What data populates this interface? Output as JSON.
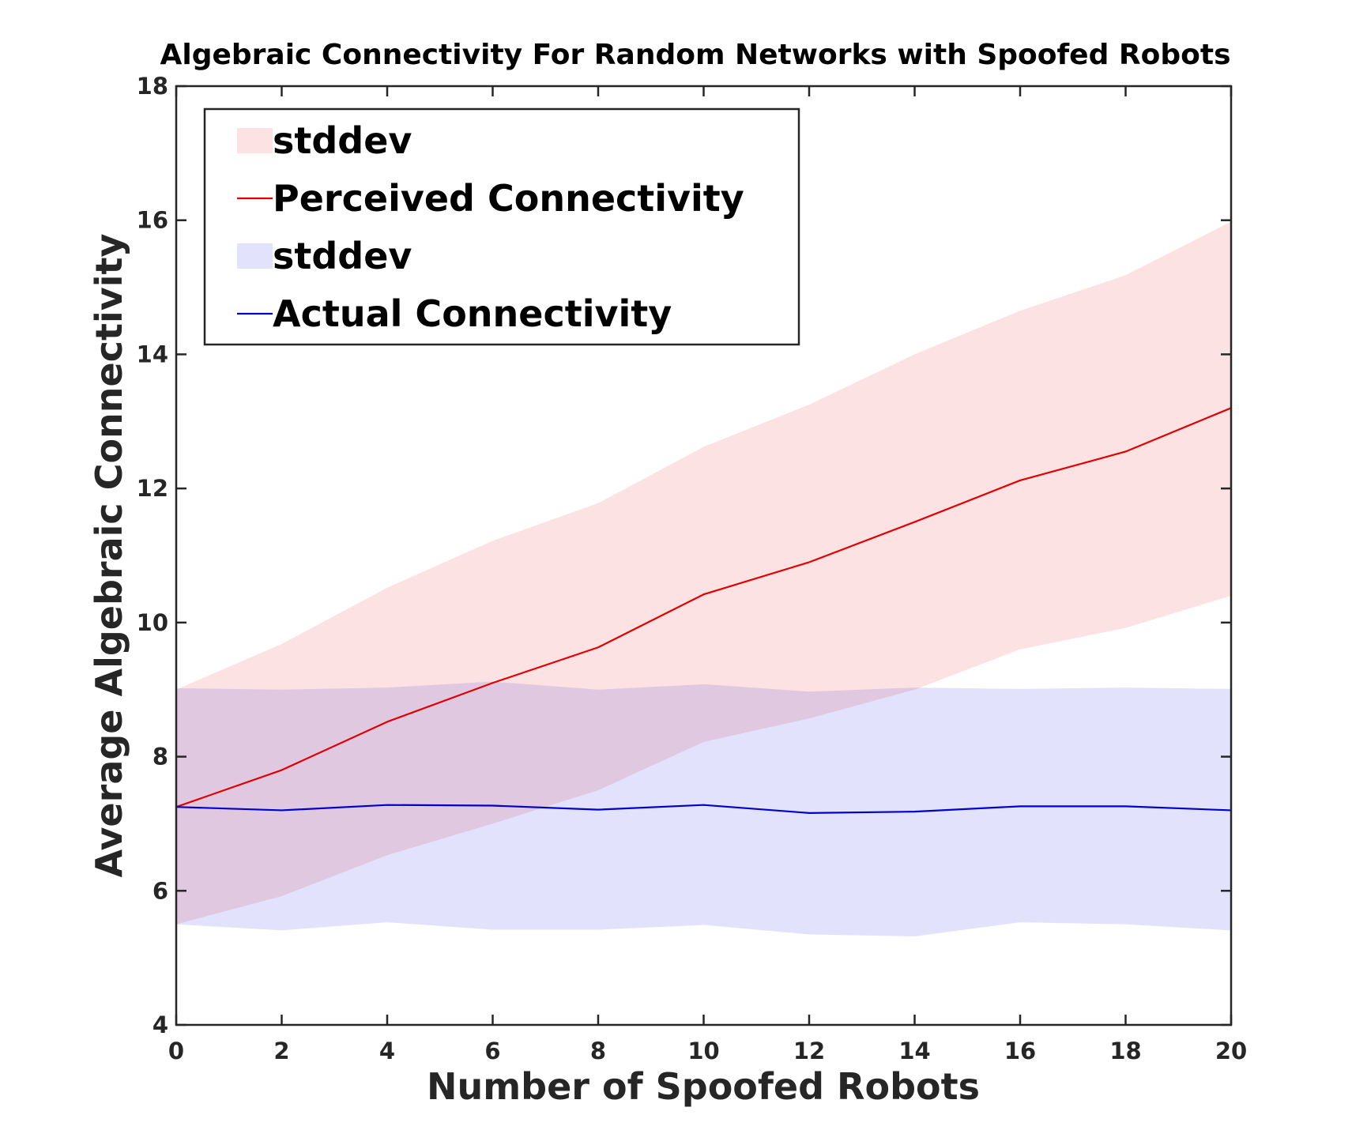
{
  "chart_data": {
    "type": "line",
    "title": "Algebraic Connectivity For Random Networks with Spoofed Robots",
    "xlabel": "Number of Spoofed Robots",
    "ylabel": "Average Algebraic Connectivity",
    "xlim": [
      0,
      20
    ],
    "ylim": [
      4,
      18
    ],
    "xticks": [
      0,
      2,
      4,
      6,
      8,
      10,
      12,
      14,
      16,
      18,
      20
    ],
    "yticks": [
      4,
      6,
      8,
      10,
      12,
      14,
      16,
      18
    ],
    "grid": false,
    "legend_position": "top-left",
    "x": [
      0,
      2,
      4,
      6,
      8,
      10,
      12,
      14,
      16,
      18,
      20
    ],
    "series": [
      {
        "name": "Perceived Connectivity",
        "color": "#e00000",
        "values": [
          7.25,
          7.8,
          8.52,
          9.1,
          9.63,
          10.42,
          10.9,
          11.5,
          12.12,
          12.55,
          13.2
        ],
        "band": {
          "name": "stddev",
          "color": "#fde2e4",
          "upper": [
            9.0,
            9.68,
            10.52,
            11.22,
            11.78,
            12.62,
            13.25,
            14.0,
            14.65,
            15.18,
            15.98
          ],
          "lower": [
            5.5,
            5.92,
            6.53,
            7.0,
            7.5,
            8.22,
            8.57,
            9.0,
            9.6,
            9.92,
            10.4
          ]
        }
      },
      {
        "name": "Actual Connectivity",
        "color": "#0000cc",
        "values": [
          7.25,
          7.2,
          7.28,
          7.27,
          7.21,
          7.28,
          7.16,
          7.18,
          7.26,
          7.26,
          7.2
        ],
        "band": {
          "name": "stddev",
          "color": "#e2e2fc",
          "upper": [
            9.02,
            9.0,
            9.03,
            9.12,
            9.0,
            9.08,
            8.97,
            9.03,
            9.01,
            9.03,
            9.01
          ],
          "lower": [
            5.5,
            5.41,
            5.53,
            5.42,
            5.42,
            5.49,
            5.35,
            5.32,
            5.53,
            5.5,
            5.41
          ]
        }
      }
    ],
    "legend": [
      {
        "label": "stddev",
        "kind": "patch",
        "color": "#fde2e4"
      },
      {
        "label": "Perceived Connectivity",
        "kind": "line",
        "color": "#e00000"
      },
      {
        "label": "stddev",
        "kind": "patch",
        "color": "#e2e2fc"
      },
      {
        "label": "Actual Connectivity",
        "kind": "line",
        "color": "#0000cc"
      }
    ]
  }
}
